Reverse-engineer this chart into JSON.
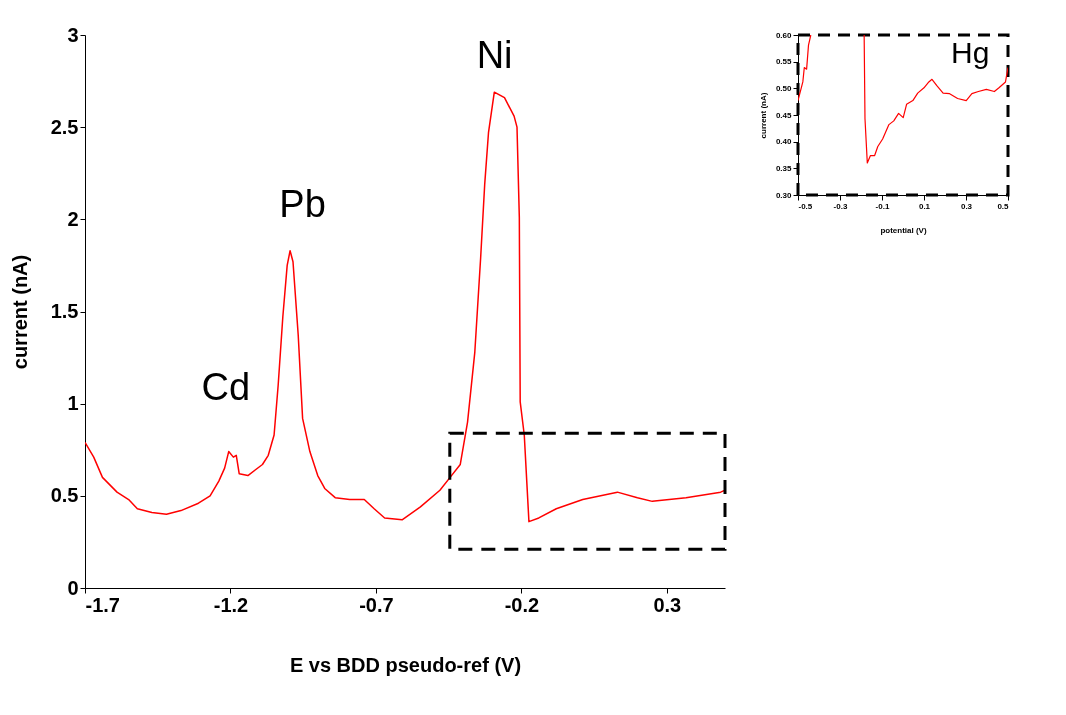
{
  "chart_data": [
    {
      "type": "line",
      "xlabel": "E vs BDD pseudo-ref (V)",
      "ylabel": "current (nA)",
      "xlim": [
        -1.7,
        0.5
      ],
      "xticks": [
        -1.7,
        -1.2,
        -0.7,
        -0.2,
        0.3
      ],
      "ylim": [
        0,
        3
      ],
      "yticks": [
        0,
        {
          "value": 0.5,
          "label": "0.5"
        },
        1,
        {
          "value": 1.5,
          "label": "1.5"
        },
        2,
        {
          "value": 2.5,
          "label": "2.5"
        },
        3
      ],
      "grid": false,
      "marker": "none",
      "line_style": "solid",
      "annotations": [
        "Cd",
        "Pb",
        "Ni"
      ],
      "series": [
        {
          "color": "#ff0000",
          "x": [
            -1.7,
            -1.67,
            -1.64,
            -1.59,
            -1.55,
            -1.52,
            -1.47,
            -1.42,
            -1.37,
            -1.31,
            -1.27,
            -1.24,
            -1.22,
            -1.206,
            -1.19,
            -1.18,
            -1.17,
            -1.14,
            -1.09,
            -1.07,
            -1.05,
            -1.036,
            -1.02,
            -1.005,
            -0.995,
            -0.985,
            -0.967,
            -0.952,
            -0.927,
            -0.9,
            -0.876,
            -0.84,
            -0.79,
            -0.74,
            -0.706,
            -0.67,
            -0.61,
            -0.547,
            -0.48,
            -0.445,
            -0.41,
            -0.385,
            -0.36,
            -0.34,
            -0.326,
            -0.313,
            -0.293,
            -0.258,
            -0.225,
            -0.215,
            -0.207,
            -0.204,
            -0.19,
            -0.174,
            -0.14,
            -0.08,
            0.011,
            0.13,
            0.199,
            0.25,
            0.366,
            0.485,
            0.5
          ],
          "values": [
            0.79,
            0.71,
            0.6,
            0.52,
            0.48,
            0.43,
            0.41,
            0.4,
            0.42,
            0.46,
            0.5,
            0.58,
            0.65,
            0.74,
            0.71,
            0.72,
            0.62,
            0.61,
            0.67,
            0.72,
            0.83,
            1.1,
            1.47,
            1.75,
            1.83,
            1.77,
            1.37,
            0.92,
            0.74,
            0.61,
            0.54,
            0.49,
            0.48,
            0.48,
            0.43,
            0.38,
            0.37,
            0.44,
            0.53,
            0.6,
            0.67,
            0.9,
            1.28,
            1.79,
            2.19,
            2.47,
            2.69,
            2.66,
            2.56,
            2.5,
            2.01,
            1.01,
            0.83,
            0.36,
            0.38,
            0.43,
            0.48,
            0.52,
            0.49,
            0.47,
            0.49,
            0.52,
            0.53
          ]
        }
      ]
    },
    {
      "type": "line",
      "xlabel": "potential (V)",
      "ylabel": "current (nA)",
      "xlim": [
        -0.5,
        0.5
      ],
      "xticks": [
        -0.5,
        -0.3,
        -0.1,
        0.1,
        0.3,
        0.5
      ],
      "ylim": [
        0.3,
        0.6
      ],
      "yticks": [
        {
          "value": 0.3,
          "label": "0.30"
        },
        0.35,
        {
          "value": 0.4,
          "label": "0.40"
        },
        0.45,
        {
          "value": 0.5,
          "label": "0.50"
        },
        0.55,
        {
          "value": 0.6,
          "label": "0.60"
        }
      ],
      "grid": false,
      "marker": "none",
      "line_style": "solid",
      "annotations": [
        "Hg"
      ],
      "series": [
        {
          "color": "#ff0000",
          "x": [
            -0.5,
            -0.477,
            -0.47,
            -0.459,
            -0.45,
            -0.439,
            null,
            -0.185,
            -0.181,
            -0.17,
            -0.155,
            -0.135,
            -0.12,
            -0.097,
            -0.067,
            -0.044,
            -0.021,
            0.001,
            0.017,
            0.047,
            0.07,
            0.1,
            0.123,
            0.138,
            0.161,
            0.191,
            0.222,
            0.26,
            0.301,
            0.328,
            0.359,
            0.397,
            0.435,
            0.457,
            0.488,
            0.5
          ],
          "values": [
            0.477,
            0.512,
            0.539,
            0.536,
            0.581,
            0.6,
            null,
            0.6,
            0.443,
            0.36,
            0.374,
            0.374,
            0.391,
            0.405,
            0.432,
            0.439,
            0.453,
            0.445,
            0.47,
            0.477,
            0.491,
            0.501,
            0.512,
            0.517,
            0.505,
            0.491,
            0.49,
            0.481,
            0.477,
            0.49,
            0.494,
            0.498,
            0.494,
            0.501,
            0.512,
            0.539
          ]
        }
      ]
    }
  ]
}
